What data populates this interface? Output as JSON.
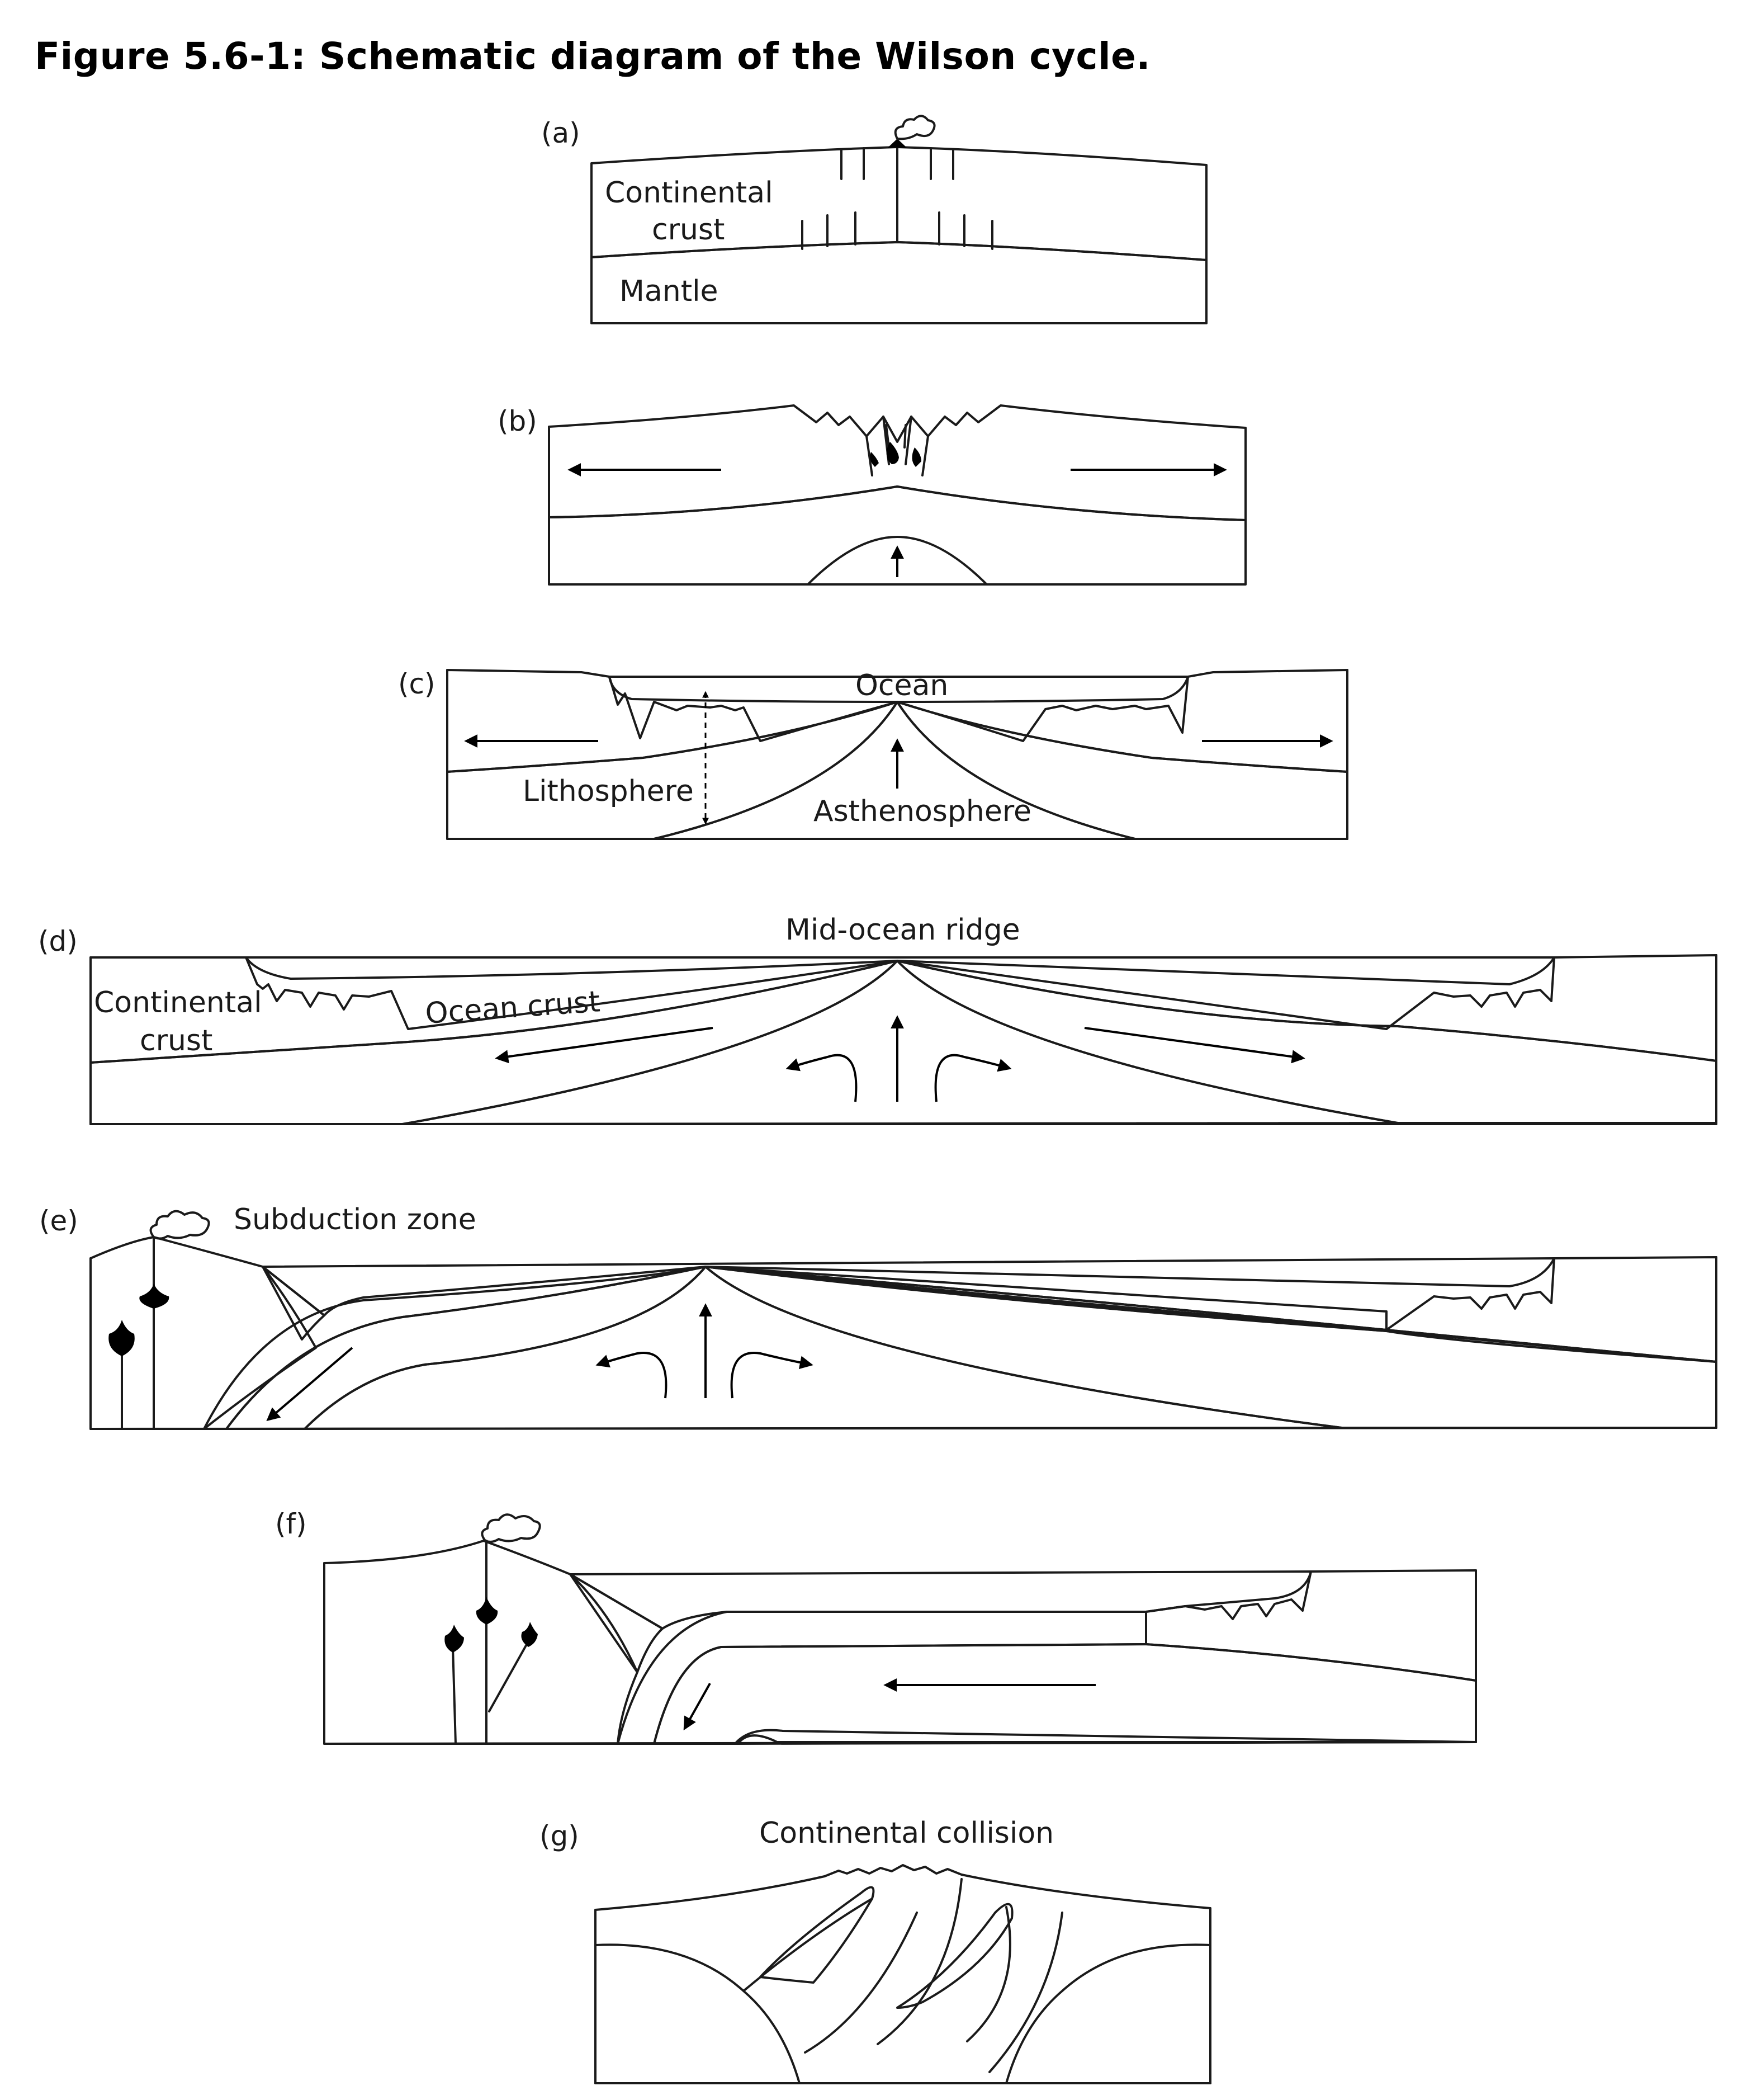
{
  "title": "Figure 5.6-1: Schematic diagram of the Wilson cycle.",
  "colors": {
    "crust": "#a8a8a8",
    "mantle": "#808080",
    "asthenosphere": "#d6d6d6",
    "ocean": "#ffffff",
    "outline": "#1a1a1a",
    "magma": "#000000"
  },
  "panels": {
    "a": {
      "letter": "(a)",
      "labels": {
        "crust_1": "Continental",
        "crust_2": "crust",
        "mantle": "Mantle"
      }
    },
    "b": {
      "letter": "(b)"
    },
    "c": {
      "letter": "(c)",
      "labels": {
        "ocean": "Ocean",
        "lithosphere": "Lithosphere",
        "asthenosphere": "Asthenosphere"
      }
    },
    "d": {
      "letter": "(d)",
      "labels": {
        "ridge": "Mid-ocean ridge",
        "crust_1": "Continental",
        "crust_2": "crust",
        "ocean_crust": "Ocean crust"
      }
    },
    "e": {
      "letter": "(e)",
      "labels": {
        "subduction": "Subduction zone"
      }
    },
    "f": {
      "letter": "(f)"
    },
    "g": {
      "letter": "(g)",
      "labels": {
        "collision": "Continental collision"
      }
    }
  }
}
